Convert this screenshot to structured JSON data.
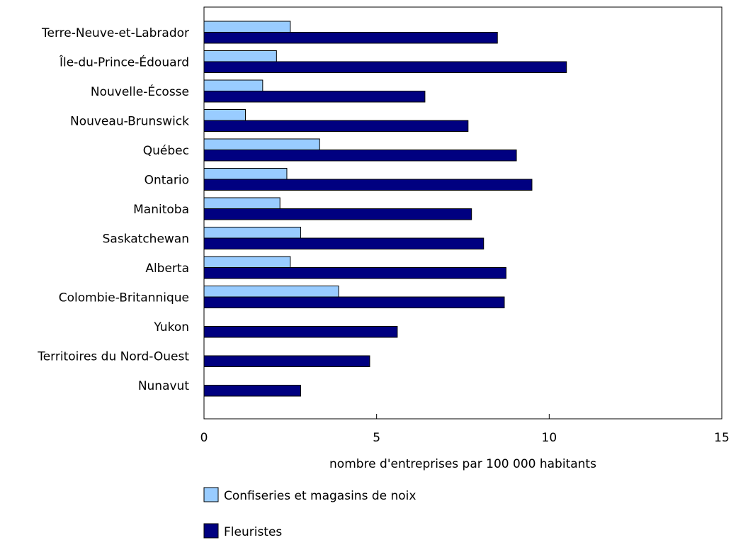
{
  "chart_data": {
    "type": "bar",
    "orientation": "horizontal",
    "categories": [
      "Terre-Neuve-et-Labrador",
      "Île-du-Prince-Édouard",
      "Nouvelle-Écosse",
      "Nouveau-Brunswick",
      "Québec",
      "Ontario",
      "Manitoba",
      "Saskatchewan",
      "Alberta",
      "Colombie-Britannique",
      "Yukon",
      "Territoires du Nord-Ouest",
      "Nunavut"
    ],
    "series": [
      {
        "name": "Confiseries et magasins de noix",
        "color": "#99ccff",
        "values": [
          2.5,
          2.1,
          1.7,
          1.2,
          3.35,
          2.4,
          2.2,
          2.8,
          2.5,
          3.9,
          0,
          0,
          0
        ]
      },
      {
        "name": "Fleuristes",
        "color": "#000080",
        "values": [
          8.5,
          10.5,
          6.4,
          7.65,
          9.05,
          9.5,
          7.75,
          8.1,
          8.75,
          8.7,
          5.6,
          4.8,
          2.8
        ]
      }
    ],
    "xlim": [
      0,
      15
    ],
    "xticks": [
      0,
      5,
      10,
      15
    ],
    "xlabel": "nombre d'entreprises par 100 000 habitants",
    "ylabel": "",
    "grid": false,
    "legend_position": "bottom"
  }
}
